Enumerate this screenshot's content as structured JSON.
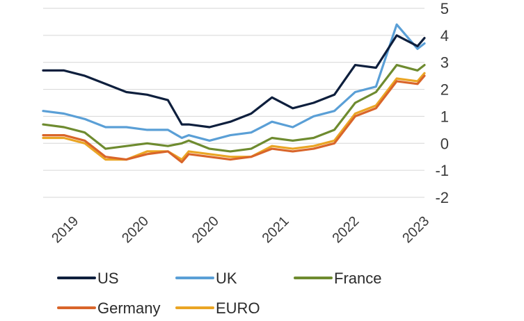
{
  "chart_data": {
    "type": "line",
    "title": "",
    "xlabel": "",
    "ylabel": "",
    "ylim": [
      -2,
      5
    ],
    "yticks": [
      5,
      4,
      3,
      2,
      1,
      0,
      -1,
      -2
    ],
    "xticks": [
      "2019",
      "2020",
      "2020",
      "2021",
      "2022",
      "2023"
    ],
    "grid": true,
    "legend": "bottom",
    "colors": {
      "US": "#0e1f3d",
      "UK": "#5a9fd6",
      "France": "#6e8b2f",
      "Germany": "#d9652a",
      "EURO": "#eaa524"
    },
    "x": [
      "2018-07",
      "2018-10",
      "2019-01",
      "2019-04",
      "2019-07",
      "2019-10",
      "2020-01",
      "2020-03",
      "2020-04",
      "2020-07",
      "2020-10",
      "2021-01",
      "2021-04",
      "2021-07",
      "2021-10",
      "2022-01",
      "2022-04",
      "2022-07",
      "2022-10",
      "2023-01",
      "2023-02"
    ],
    "series": [
      {
        "name": "US",
        "values": [
          2.7,
          2.7,
          2.5,
          2.2,
          1.9,
          1.8,
          1.6,
          0.7,
          0.7,
          0.6,
          0.8,
          1.1,
          1.7,
          1.3,
          1.5,
          1.8,
          2.9,
          2.8,
          4.0,
          3.6,
          3.9
        ]
      },
      {
        "name": "UK",
        "values": [
          1.2,
          1.1,
          0.9,
          0.6,
          0.6,
          0.5,
          0.5,
          0.2,
          0.3,
          0.1,
          0.3,
          0.4,
          0.8,
          0.6,
          1.0,
          1.2,
          1.9,
          2.1,
          4.4,
          3.5,
          3.7
        ]
      },
      {
        "name": "France",
        "values": [
          0.7,
          0.6,
          0.4,
          -0.2,
          -0.1,
          0.0,
          -0.1,
          0.0,
          0.1,
          -0.2,
          -0.3,
          -0.2,
          0.2,
          0.1,
          0.2,
          0.5,
          1.5,
          1.9,
          2.9,
          2.7,
          2.9
        ]
      },
      {
        "name": "Germany",
        "values": [
          0.3,
          0.3,
          0.1,
          -0.5,
          -0.6,
          -0.4,
          -0.3,
          -0.7,
          -0.4,
          -0.5,
          -0.6,
          -0.5,
          -0.2,
          -0.3,
          -0.2,
          0.0,
          1.0,
          1.3,
          2.3,
          2.2,
          2.5
        ]
      },
      {
        "name": "EURO",
        "values": [
          0.2,
          0.2,
          0.0,
          -0.6,
          -0.6,
          -0.3,
          -0.3,
          -0.6,
          -0.3,
          -0.4,
          -0.5,
          -0.5,
          -0.1,
          -0.2,
          -0.1,
          0.1,
          1.1,
          1.4,
          2.4,
          2.3,
          2.6
        ]
      }
    ]
  }
}
